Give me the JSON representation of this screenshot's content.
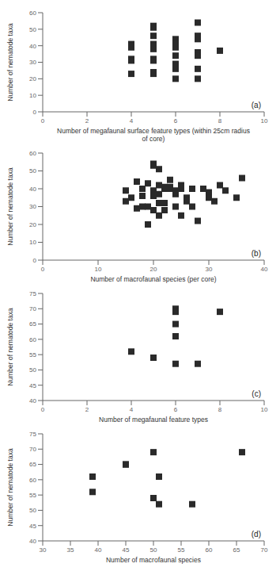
{
  "chart_data": [
    {
      "type": "scatter",
      "x": [
        4,
        4,
        4,
        4,
        4,
        5,
        5,
        5,
        5,
        5,
        5,
        5,
        5,
        5,
        6,
        6,
        6,
        6,
        6,
        6,
        6,
        7,
        7,
        7,
        7,
        7,
        7,
        7,
        8
      ],
      "values": [
        41,
        39,
        32,
        31,
        23,
        52,
        51,
        46,
        41,
        38,
        32,
        31,
        24,
        23,
        44,
        41,
        39,
        34,
        29,
        26,
        20,
        54,
        46,
        44,
        36,
        34,
        26,
        20,
        37
      ],
      "xlabel": "Number of megafaunal surface feature types (within 25cm radius\nof core)",
      "ylabel": "Number of nematode taxa",
      "xlim": [
        0,
        10
      ],
      "ylim": [
        0,
        60
      ],
      "xticks": [
        0,
        2,
        4,
        6,
        8,
        10
      ],
      "yticks": [
        0,
        10,
        20,
        30,
        40,
        50,
        60
      ],
      "annotation": "(a)",
      "color": "#2a2a2a",
      "marker": "square",
      "grid": false
    },
    {
      "type": "scatter",
      "x": [
        15,
        15,
        16,
        17,
        17,
        18,
        18,
        18,
        19,
        19,
        19,
        20,
        20,
        20,
        20,
        20,
        21,
        21,
        21,
        21,
        21,
        22,
        22,
        22,
        22,
        23,
        23,
        23,
        24,
        24,
        24,
        25,
        25,
        25,
        26,
        26,
        27,
        27,
        28,
        29,
        30,
        30,
        31,
        32,
        33,
        35,
        36
      ],
      "values": [
        39,
        33,
        35,
        44,
        29,
        40,
        36,
        30,
        43,
        30,
        20,
        54,
        53,
        39,
        36,
        28,
        51,
        42,
        37,
        32,
        25,
        41,
        40,
        32,
        28,
        45,
        41,
        40,
        39,
        37,
        30,
        42,
        40,
        25,
        35,
        33,
        40,
        30,
        22,
        40,
        38,
        35,
        33,
        42,
        39,
        35,
        46
      ],
      "xlabel": "Number of macrofaunal species (per core)",
      "ylabel": "Number of nematode taxa",
      "xlim": [
        0,
        40
      ],
      "ylim": [
        0,
        60
      ],
      "xticks": [
        0,
        10,
        20,
        30,
        40
      ],
      "yticks": [
        0,
        10,
        20,
        30,
        40,
        50,
        60
      ],
      "annotation": "(b)",
      "color": "#2a2a2a",
      "marker": "square",
      "grid": false
    },
    {
      "type": "scatter",
      "x": [
        4,
        5,
        5,
        6,
        6,
        6,
        6,
        6,
        7,
        8
      ],
      "values": [
        56,
        54,
        54,
        70,
        69,
        65,
        61,
        52,
        52,
        69
      ],
      "xlabel": "Number of megafaunal feature types",
      "ylabel": "Number of nematode taxa",
      "xlim": [
        0,
        10
      ],
      "ylim": [
        40,
        75
      ],
      "xticks": [
        0,
        2,
        4,
        6,
        8,
        10
      ],
      "yticks": [
        40,
        45,
        50,
        55,
        60,
        65,
        70,
        75
      ],
      "annotation": "(c)",
      "color": "#2a2a2a",
      "marker": "square",
      "grid": false
    },
    {
      "type": "scatter",
      "x": [
        39,
        39,
        45,
        45,
        50,
        50,
        51,
        51,
        57,
        66
      ],
      "values": [
        61,
        56,
        65,
        65,
        54,
        69,
        61,
        52,
        52,
        69
      ],
      "xlabel": "Number of macrofaunal species",
      "ylabel": "Number of nematode taxa",
      "xlim": [
        30,
        70
      ],
      "ylim": [
        40,
        75
      ],
      "xticks": [
        30,
        35,
        40,
        45,
        50,
        55,
        60,
        65,
        70
      ],
      "yticks": [
        40,
        45,
        50,
        55,
        60,
        65,
        70,
        75
      ],
      "annotation": "(d)",
      "color": "#2a2a2a",
      "marker": "square",
      "grid": false
    }
  ]
}
